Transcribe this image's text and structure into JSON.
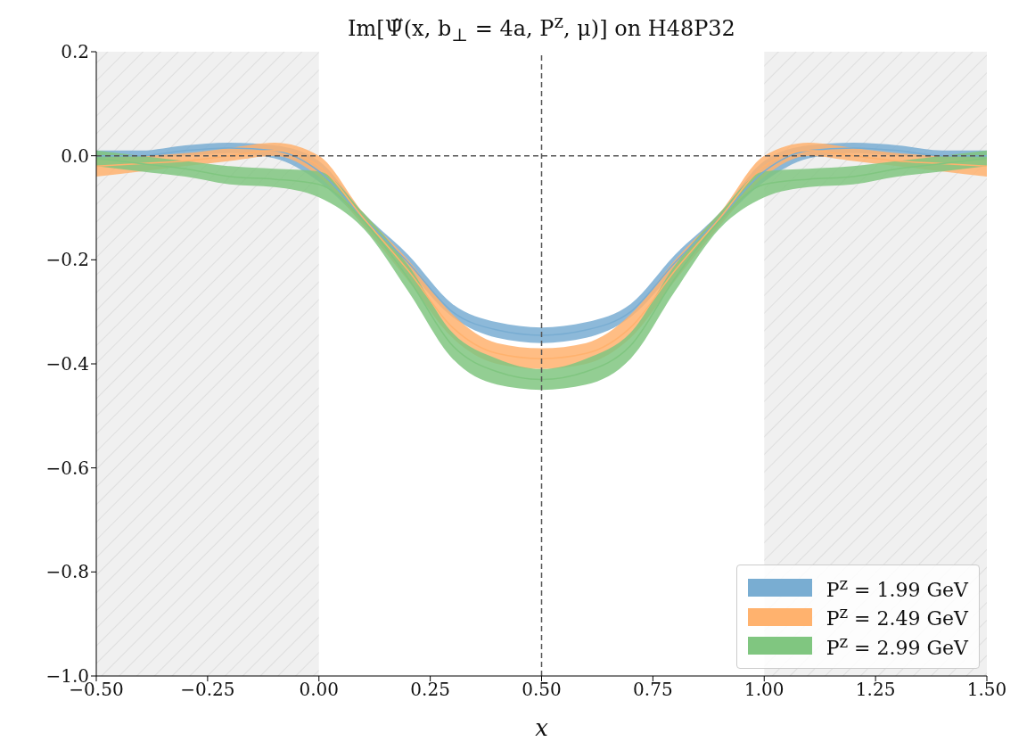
{
  "chart_data": {
    "type": "line",
    "title": "Im[Ψ̃(x, b$_{⊥}$ = 4a, P$^{z}$, μ)] on H48P32",
    "xlabel": "x",
    "x": [
      -0.5,
      -0.4,
      -0.3,
      -0.2,
      -0.1,
      0,
      0.1,
      0.2,
      0.3,
      0.4,
      0.5,
      0.6,
      0.7,
      0.8,
      0.9,
      1.0,
      1.1,
      1.2,
      1.3,
      1.4,
      1.5
    ],
    "series": [
      {
        "name": "P$^{z}$ = 1.99 GeV",
        "color": "#79add2",
        "values": [
          0.0,
          0.0,
          0.01,
          0.015,
          0.01,
          -0.03,
          -0.12,
          -0.205,
          -0.3,
          -0.335,
          -0.345,
          -0.335,
          -0.3,
          -0.205,
          -0.12,
          -0.03,
          0.01,
          0.015,
          0.01,
          0.0,
          0.0
        ],
        "lower": [
          -0.01,
          -0.005,
          0.0,
          0.005,
          -0.005,
          -0.05,
          -0.13,
          -0.22,
          -0.31,
          -0.35,
          -0.36,
          -0.35,
          -0.31,
          -0.22,
          -0.13,
          -0.05,
          -0.005,
          0.005,
          0.0,
          -0.005,
          -0.01
        ],
        "upper": [
          0.01,
          0.01,
          0.02,
          0.025,
          0.02,
          -0.01,
          -0.11,
          -0.19,
          -0.285,
          -0.32,
          -0.33,
          -0.32,
          -0.285,
          -0.19,
          -0.11,
          -0.01,
          0.02,
          0.025,
          0.02,
          0.01,
          0.01
        ]
      },
      {
        "name": "P$^{z}$ = 2.49 GeV",
        "color": "#ffb26e",
        "values": [
          -0.02,
          -0.015,
          -0.01,
          0.0,
          0.01,
          -0.02,
          -0.12,
          -0.22,
          -0.33,
          -0.38,
          -0.39,
          -0.38,
          -0.33,
          -0.22,
          -0.12,
          -0.02,
          0.01,
          0.0,
          -0.01,
          -0.015,
          -0.02
        ],
        "lower": [
          -0.04,
          -0.03,
          -0.02,
          -0.01,
          0.0,
          -0.04,
          -0.135,
          -0.24,
          -0.35,
          -0.4,
          -0.41,
          -0.4,
          -0.35,
          -0.24,
          -0.135,
          -0.04,
          0.0,
          -0.01,
          -0.02,
          -0.03,
          -0.04
        ],
        "upper": [
          -0.005,
          0.0,
          0.005,
          0.015,
          0.025,
          0.0,
          -0.11,
          -0.2,
          -0.305,
          -0.36,
          -0.37,
          -0.36,
          -0.305,
          -0.2,
          -0.11,
          0.0,
          0.025,
          0.015,
          0.005,
          0.0,
          -0.005
        ]
      },
      {
        "name": "P$^{z}$ = 2.99 GeV",
        "color": "#80c680",
        "values": [
          -0.005,
          -0.015,
          -0.025,
          -0.04,
          -0.045,
          -0.055,
          -0.125,
          -0.235,
          -0.365,
          -0.415,
          -0.43,
          -0.415,
          -0.365,
          -0.235,
          -0.125,
          -0.055,
          -0.045,
          -0.04,
          -0.025,
          -0.015,
          -0.005
        ],
        "lower": [
          -0.02,
          -0.03,
          -0.04,
          -0.055,
          -0.06,
          -0.08,
          -0.14,
          -0.26,
          -0.39,
          -0.44,
          -0.45,
          -0.44,
          -0.39,
          -0.26,
          -0.14,
          -0.08,
          -0.06,
          -0.055,
          -0.04,
          -0.03,
          -0.02
        ],
        "upper": [
          0.01,
          0.0,
          -0.01,
          -0.02,
          -0.025,
          -0.03,
          -0.11,
          -0.21,
          -0.34,
          -0.39,
          -0.41,
          -0.39,
          -0.34,
          -0.21,
          -0.11,
          -0.03,
          -0.025,
          -0.02,
          -0.01,
          0.0,
          0.01
        ]
      }
    ],
    "xlim": [
      -0.5,
      1.5
    ],
    "xticks": [
      {
        "value": -0.5,
        "label": "−0.50"
      },
      {
        "value": -0.25,
        "label": "−0.25"
      },
      {
        "value": 0,
        "label": "0.00"
      },
      {
        "value": 0.25,
        "label": "0.25"
      },
      {
        "value": 0.5,
        "label": "0.50"
      },
      {
        "value": 0.75,
        "label": "0.75"
      },
      {
        "value": 1,
        "label": "1.00"
      },
      {
        "value": 1.25,
        "label": "1.25"
      },
      {
        "value": 1.5,
        "label": "1.50"
      }
    ],
    "ylim": [
      -1.0,
      0.2
    ],
    "yticks": [
      {
        "value": -1,
        "label": "−1.0"
      },
      {
        "value": -0.8,
        "label": "−0.8"
      },
      {
        "value": -0.6,
        "label": "−0.6"
      },
      {
        "value": -0.4,
        "label": "−0.4"
      },
      {
        "value": -0.2,
        "label": "−0.2"
      },
      {
        "value": 0,
        "label": "0.0"
      },
      {
        "value": 0.2,
        "label": "0.2"
      }
    ],
    "ref_lines": [
      {
        "axis": "y",
        "value": 0,
        "color": "#555555",
        "line_style": "dashed"
      },
      {
        "axis": "x",
        "value": 0.5,
        "color": "#555555",
        "line_style": "dashed"
      }
    ],
    "bands": [
      {
        "axis": "x",
        "from": -0.5,
        "to": 0,
        "color": "#f0f0f0"
      },
      {
        "axis": "x",
        "from": 1,
        "to": 1.5,
        "color": "#f0f0f0"
      }
    ],
    "legend": "bottom right",
    "marker": "none",
    "line_style": "solid"
  }
}
